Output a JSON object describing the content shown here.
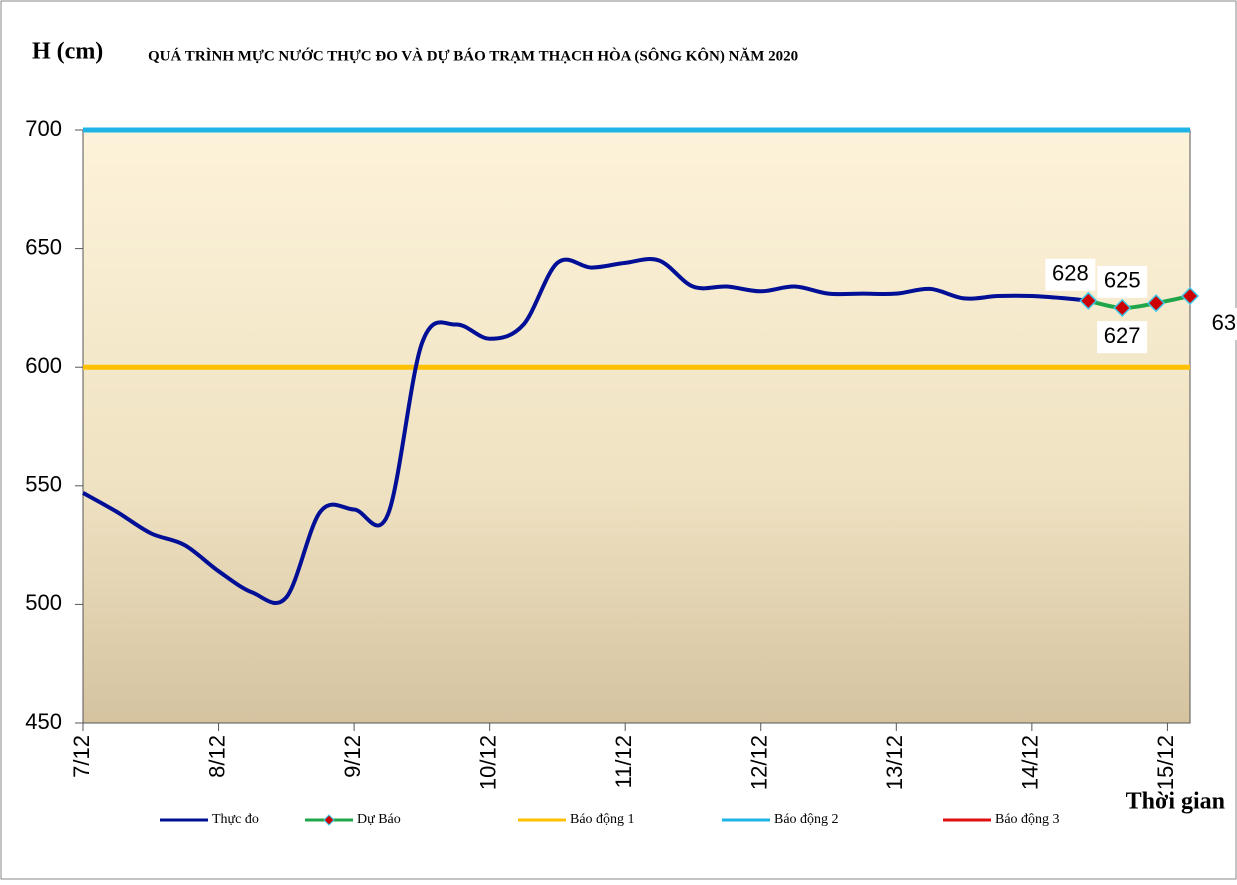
{
  "chart_data": {
    "type": "line",
    "y_label": "H (cm)",
    "title": "QUÁ TRÌNH MỰC NƯỚC THỰC ĐO VÀ DỰ BÁO TRẠM THẠCH HÒA (SÔNG KÔN) NĂM 2020",
    "x_label": "Thời gian",
    "xlim": [
      0,
      196
    ],
    "xticks": [
      {
        "value": 0,
        "label": "7/12"
      },
      {
        "value": 24,
        "label": "8/12"
      },
      {
        "value": 48,
        "label": "9/12"
      },
      {
        "value": 72,
        "label": "10/12"
      },
      {
        "value": 96,
        "label": "11/12"
      },
      {
        "value": 120,
        "label": "12/12"
      },
      {
        "value": 144,
        "label": "13/12"
      },
      {
        "value": 168,
        "label": "14/12"
      },
      {
        "value": 192,
        "label": "15/12"
      }
    ],
    "ylim": [
      450,
      700
    ],
    "yticks": [
      450,
      500,
      550,
      600,
      650,
      700
    ],
    "series": [
      {
        "name": "Thực đo",
        "color": "#000f96",
        "x": [
          0,
          6,
          12,
          18,
          24,
          30,
          36,
          42,
          48,
          54,
          60,
          66,
          72,
          78,
          84,
          90,
          96,
          102,
          108,
          114,
          120,
          126,
          132,
          138,
          144,
          150,
          156,
          162,
          168,
          174,
          178
        ],
        "values": [
          547,
          539,
          530,
          525,
          514,
          505,
          503,
          539,
          540,
          538,
          610,
          618,
          612,
          618,
          644,
          642,
          644,
          645,
          634,
          634,
          632,
          634,
          631,
          631,
          631,
          633,
          629,
          630,
          630,
          629,
          628
        ]
      },
      {
        "name": "Dự Báo",
        "color": "#1fa64a",
        "marker_color": "#cc0000",
        "x": [
          178,
          184,
          190,
          196
        ],
        "values": [
          628,
          625,
          627,
          630
        ]
      },
      {
        "name": "Báo động 1",
        "color": "#ffc000",
        "x": [
          0,
          196
        ],
        "values": [
          600,
          600
        ]
      },
      {
        "name": "Báo động 2",
        "color": "#1eb4e6",
        "x": [
          0,
          196
        ],
        "values": [
          700,
          700
        ]
      },
      {
        "name": "Báo động 3",
        "color": "#e01010",
        "x": [],
        "values": []
      }
    ]
  }
}
